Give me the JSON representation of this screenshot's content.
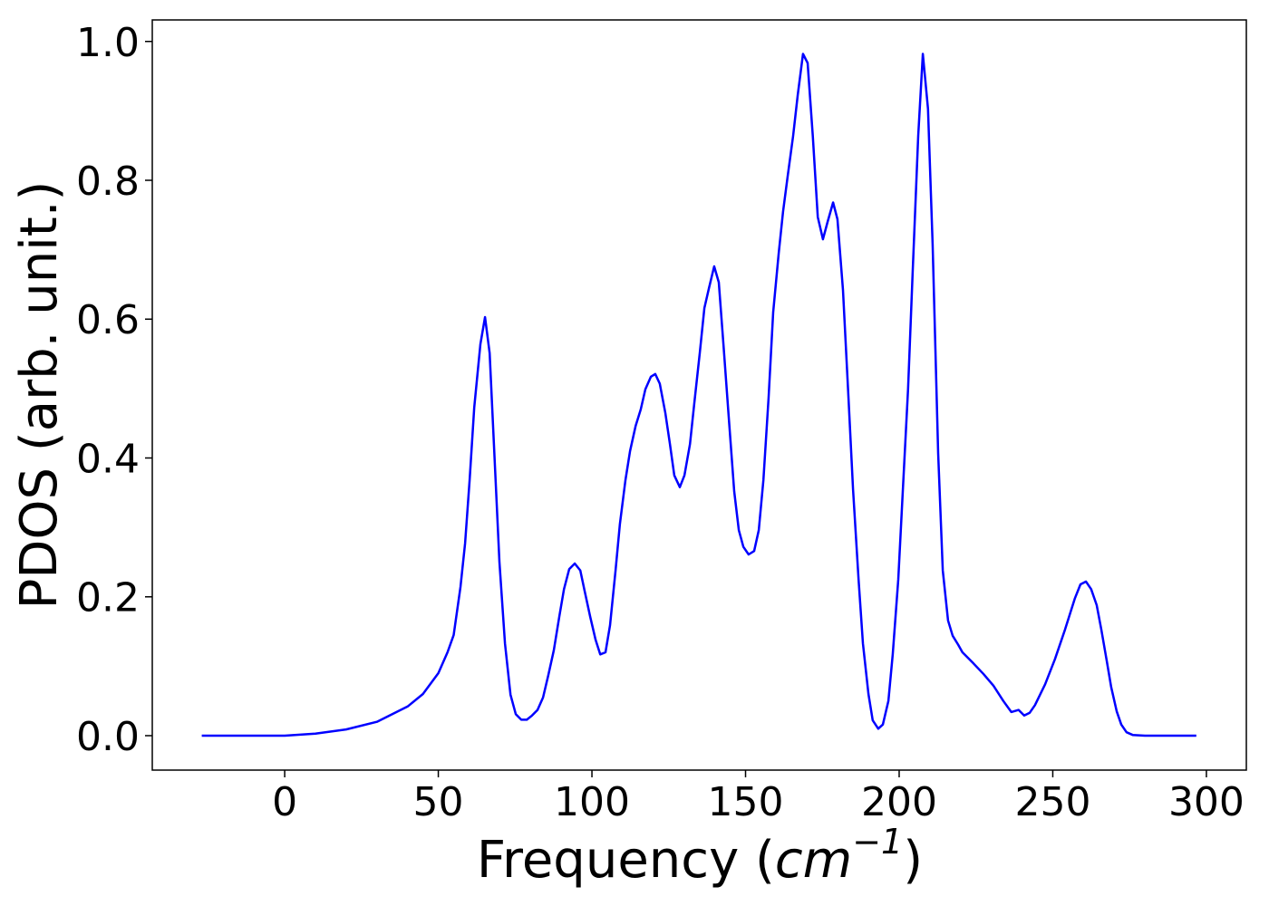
{
  "chart_data": {
    "type": "line",
    "xlabel": [
      "Frequency (",
      "cm",
      "−1",
      ")"
    ],
    "ylabel": "PDOS (arb. unit.)",
    "color": "#0000ff",
    "xlim": [
      -43.1,
      313
    ],
    "ylim": [
      -0.0496,
      1.031
    ],
    "xticks": [
      0,
      50,
      100,
      150,
      200,
      250,
      300
    ],
    "yticks": [
      {
        "value": 0,
        "label": "0.0"
      },
      0.2,
      0.4,
      0.6,
      0.8,
      {
        "value": 1,
        "label": "1.0"
      }
    ],
    "x": [
      -27,
      0,
      10,
      20,
      30,
      40,
      45,
      50,
      53,
      55,
      57.2,
      58.7,
      60.2,
      61.7,
      63.7,
      65.2,
      66.7,
      68.1,
      69.9,
      71.7,
      73.5,
      75.2,
      77,
      78.8,
      80.5,
      82.3,
      84.1,
      85.8,
      87.6,
      89.4,
      90.9,
      92.6,
      94.4,
      96.2,
      97.6,
      99.4,
      101.2,
      102.7,
      104.4,
      105.9,
      107.7,
      109.1,
      110.9,
      112.4,
      114.2,
      115.9,
      117.4,
      119.2,
      120.6,
      122.1,
      123.9,
      125.4,
      126.8,
      128.6,
      130.1,
      131.9,
      133.3,
      135.1,
      136.6,
      138.1,
      139.8,
      141.3,
      142.8,
      144.5,
      146.3,
      147.8,
      149.3,
      151,
      152.8,
      154.3,
      155.8,
      157.5,
      159,
      160.8,
      162.2,
      163.7,
      165.5,
      167,
      168.7,
      170.2,
      171.9,
      173.5,
      175.2,
      176.7,
      178.5,
      179.9,
      181.7,
      183.5,
      185,
      186.8,
      188.2,
      190,
      191.4,
      193.2,
      194.7,
      196.5,
      197.9,
      199.7,
      201.2,
      202.9,
      204.4,
      206.2,
      207.7,
      209.4,
      210.9,
      212.7,
      214.2,
      215.9,
      217.4,
      219.2,
      220.6,
      224.2,
      227.4,
      230.7,
      233.9,
      236.5,
      238.9,
      240.7,
      242.5,
      244.2,
      247.5,
      250.7,
      254,
      257.2,
      259,
      260.8,
      262.5,
      264.3,
      265.8,
      267.6,
      269,
      270.8,
      272.3,
      274,
      276,
      280,
      296.7
    ],
    "values": [
      0,
      0,
      0.003,
      0.009,
      0.02,
      0.042,
      0.06,
      0.09,
      0.12,
      0.145,
      0.214,
      0.277,
      0.368,
      0.473,
      0.564,
      0.603,
      0.551,
      0.42,
      0.25,
      0.133,
      0.059,
      0.031,
      0.023,
      0.023,
      0.029,
      0.037,
      0.055,
      0.087,
      0.123,
      0.172,
      0.211,
      0.24,
      0.248,
      0.238,
      0.209,
      0.172,
      0.138,
      0.117,
      0.12,
      0.159,
      0.238,
      0.305,
      0.368,
      0.41,
      0.446,
      0.47,
      0.499,
      0.517,
      0.521,
      0.507,
      0.465,
      0.42,
      0.375,
      0.358,
      0.375,
      0.42,
      0.478,
      0.551,
      0.616,
      0.645,
      0.676,
      0.653,
      0.564,
      0.46,
      0.352,
      0.296,
      0.272,
      0.261,
      0.266,
      0.296,
      0.368,
      0.486,
      0.61,
      0.695,
      0.755,
      0.805,
      0.864,
      0.923,
      0.982,
      0.969,
      0.864,
      0.747,
      0.715,
      0.74,
      0.768,
      0.744,
      0.642,
      0.486,
      0.355,
      0.225,
      0.133,
      0.06,
      0.022,
      0.01,
      0.016,
      0.05,
      0.117,
      0.225,
      0.355,
      0.499,
      0.668,
      0.864,
      0.982,
      0.903,
      0.708,
      0.407,
      0.238,
      0.166,
      0.144,
      0.131,
      0.12,
      0.104,
      0.089,
      0.072,
      0.05,
      0.034,
      0.037,
      0.029,
      0.033,
      0.044,
      0.074,
      0.11,
      0.153,
      0.198,
      0.218,
      0.222,
      0.211,
      0.188,
      0.153,
      0.107,
      0.07,
      0.035,
      0.016,
      0.005,
      0.001,
      0,
      0
    ]
  }
}
